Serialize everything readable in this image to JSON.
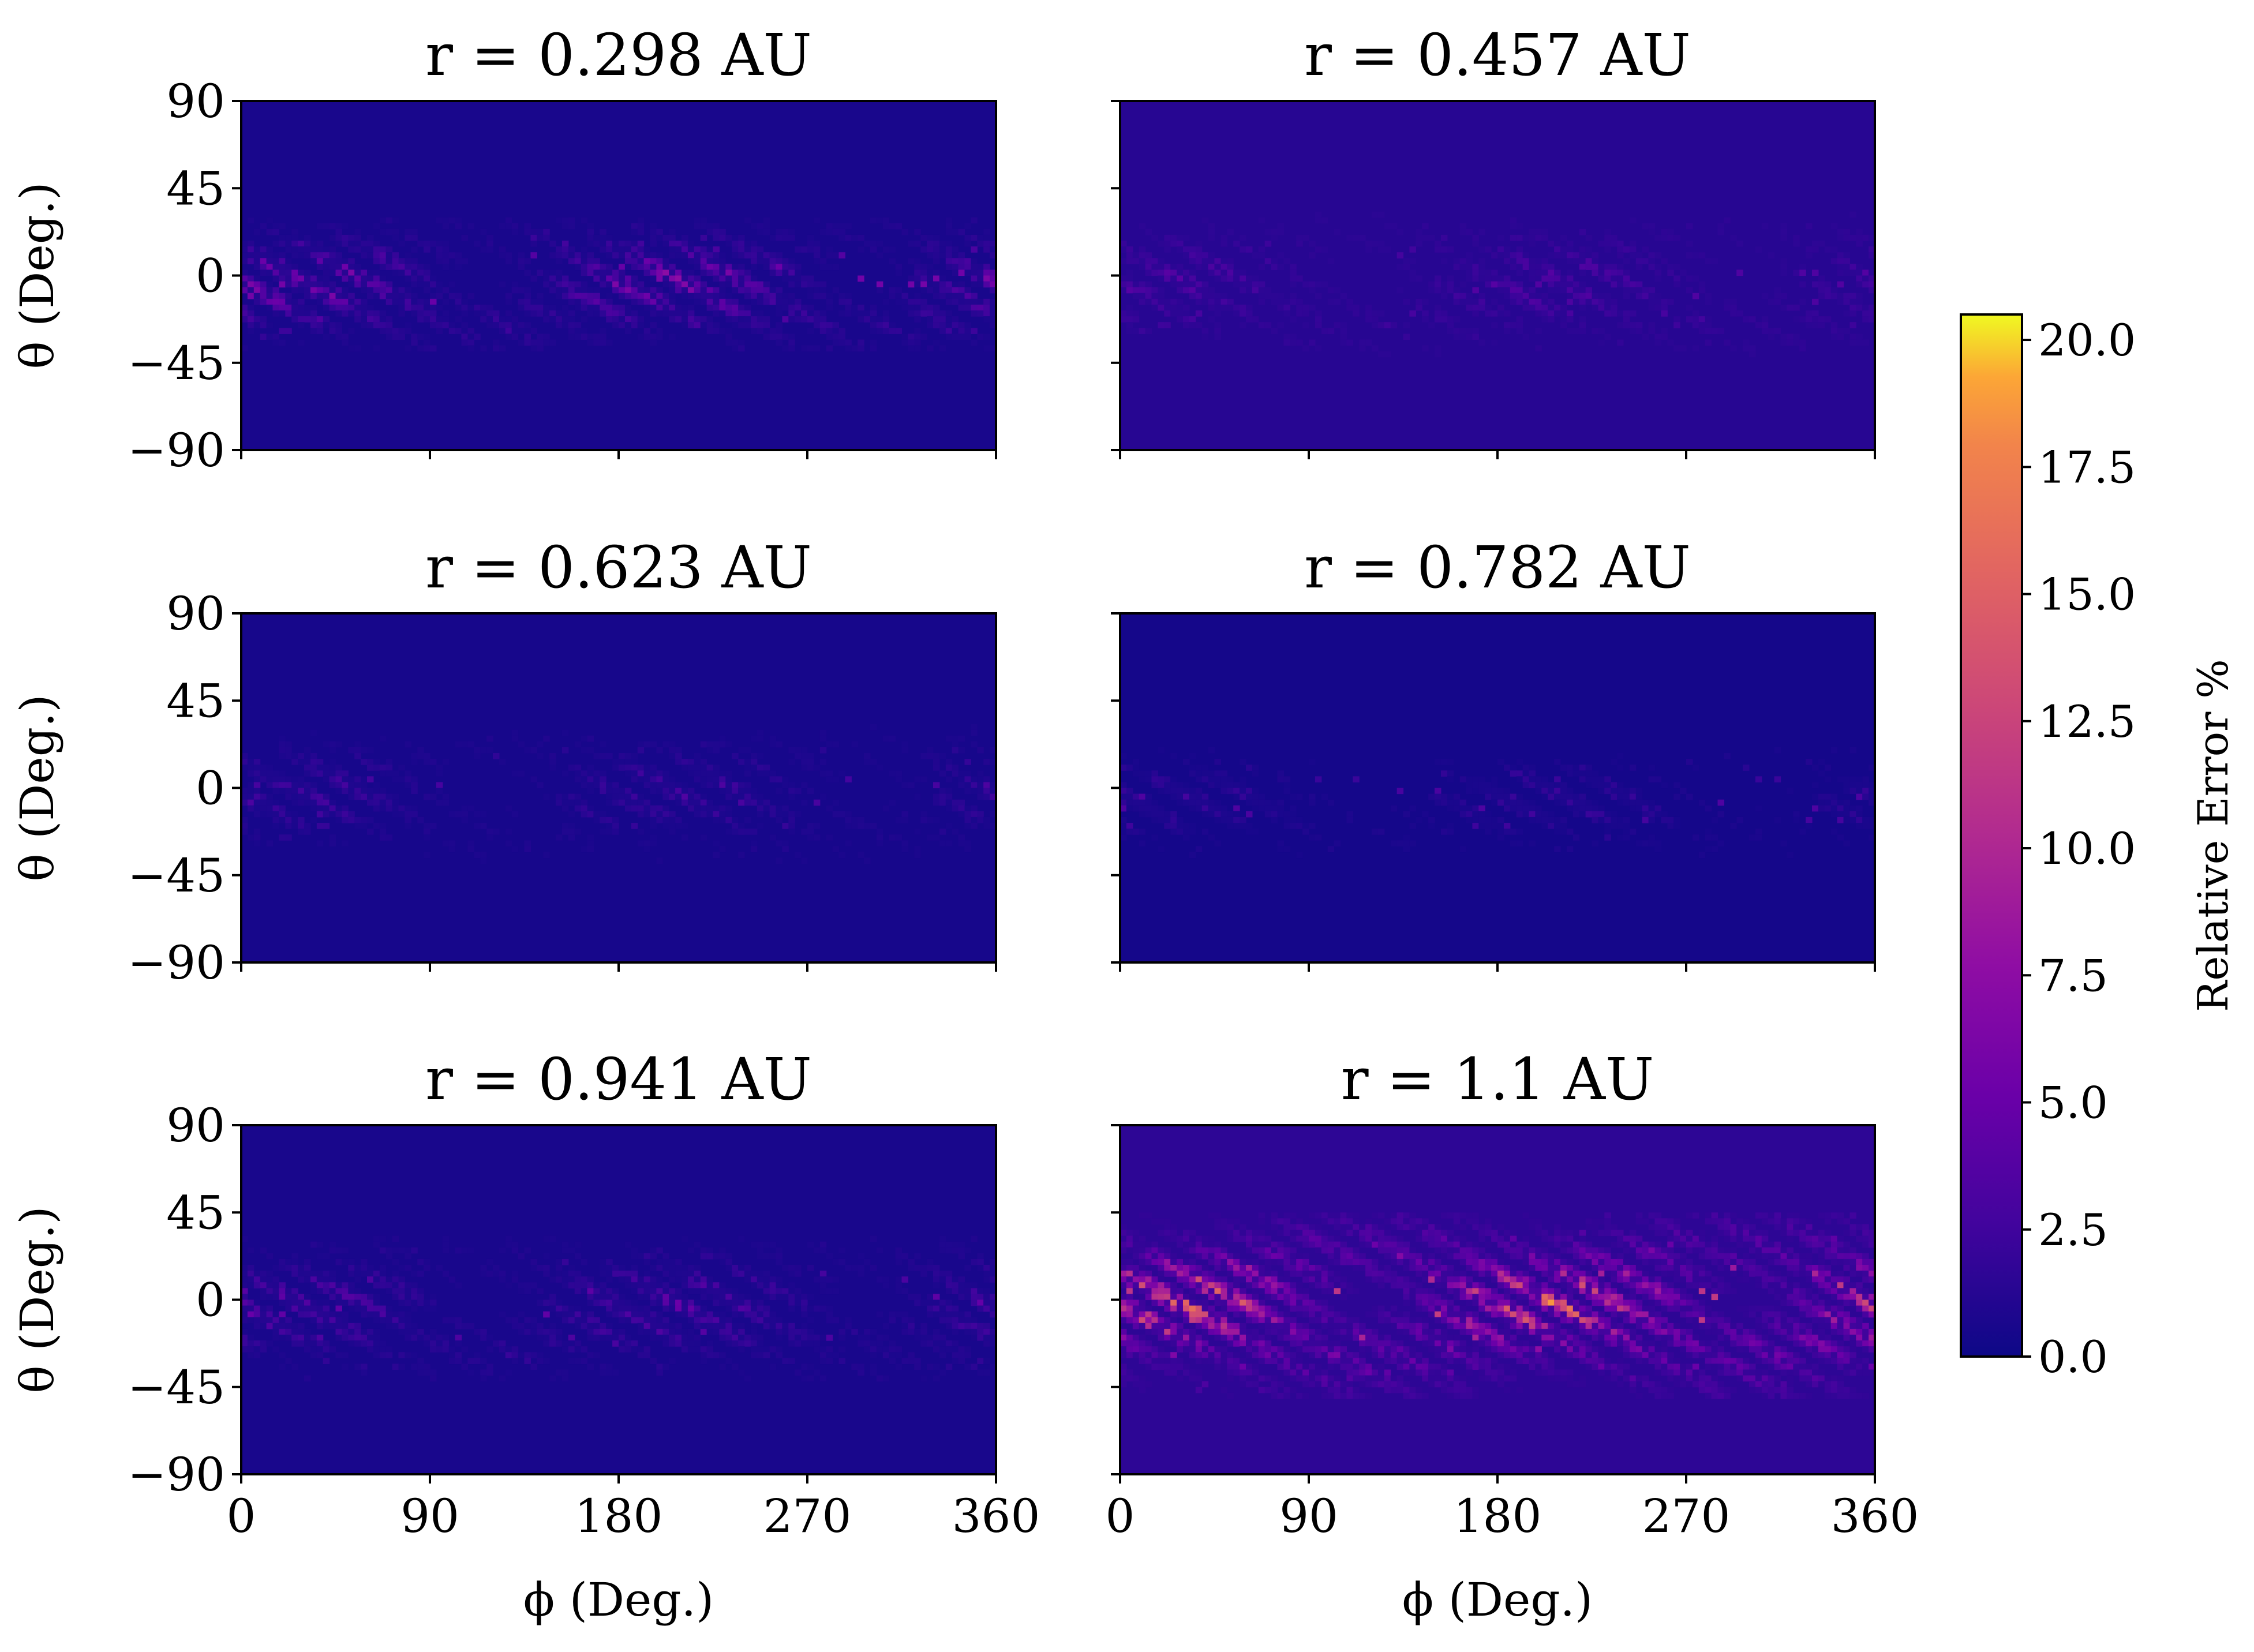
{
  "chart_data": {
    "type": "heatmap",
    "colormap": "plasma",
    "layout": {
      "rows": 3,
      "cols": 2
    },
    "xlabel": "ϕ (Deg.)",
    "ylabel": "θ (Deg.)",
    "xlim": [
      0,
      360
    ],
    "ylim": [
      -90,
      90
    ],
    "xticks": [
      "0",
      "90",
      "180",
      "270",
      "360"
    ],
    "yticks": [
      "90",
      "45",
      "0",
      "−45",
      "−90"
    ],
    "panels": [
      {
        "title": "r = 0.298 AU",
        "background": 0.6,
        "peak": 8.5,
        "band_center": -5,
        "band_halfwidth": 28,
        "density": 0.55
      },
      {
        "title": "r = 0.457 AU",
        "background": 1.3,
        "peak": 3.8,
        "band_center": -5,
        "band_halfwidth": 30,
        "density": 0.45
      },
      {
        "title": "r = 0.623 AU",
        "background": 0.5,
        "peak": 4.2,
        "band_center": -3,
        "band_halfwidth": 28,
        "density": 0.4
      },
      {
        "title": "r = 0.782 AU",
        "background": 0.4,
        "peak": 5.0,
        "band_center": -8,
        "band_halfwidth": 22,
        "density": 0.25
      },
      {
        "title": "r = 0.941 AU",
        "background": 0.6,
        "peak": 6.5,
        "band_center": -5,
        "band_halfwidth": 30,
        "density": 0.45
      },
      {
        "title": "r = 1.1 AU",
        "background": 1.6,
        "peak": 17.0,
        "band_center": -3,
        "band_halfwidth": 38,
        "density": 0.7
      }
    ],
    "colorbar": {
      "label": "Relative Error %",
      "range": [
        0,
        20.5
      ],
      "ticks": [
        "0.0",
        "2.5",
        "5.0",
        "7.5",
        "10.0",
        "12.5",
        "15.0",
        "17.5",
        "20.0"
      ]
    }
  }
}
